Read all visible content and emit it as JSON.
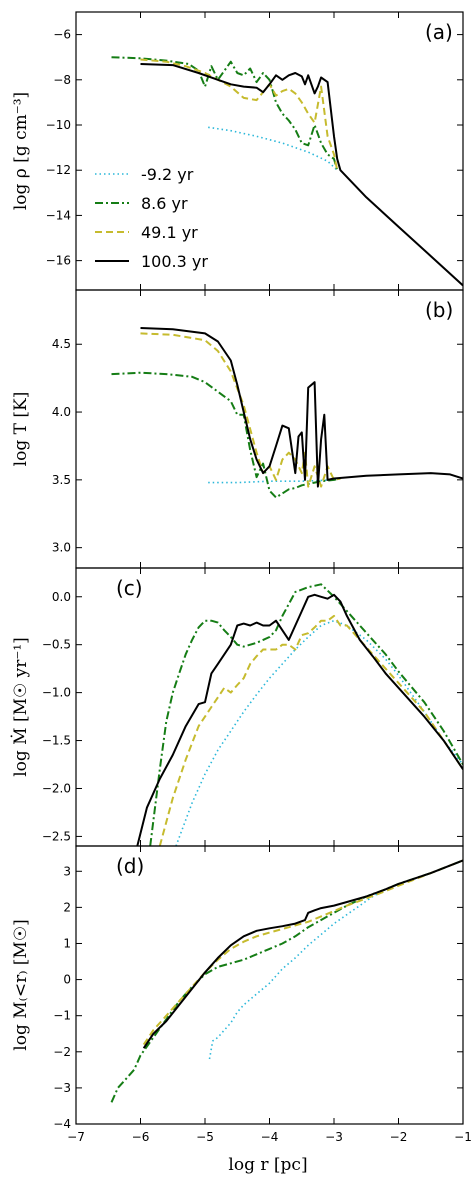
{
  "figure": {
    "xlabel": "log r [pc]",
    "xlim": [
      -7,
      -1
    ],
    "xticks": [
      -7,
      -6,
      -5,
      -4,
      -3,
      -2,
      -1
    ],
    "xtick_labels": [
      "−7",
      "−6",
      "−5",
      "−4",
      "−3",
      "−2",
      "−1"
    ]
  },
  "series_styles": [
    {
      "name": "-9.2 yr",
      "color": "#2ab7d9",
      "dash": "1.5,3",
      "width": 1.6
    },
    {
      "name": "8.6 yr",
      "color": "#157d15",
      "dash": "8,3,2,3",
      "width": 2
    },
    {
      "name": "49.1 yr",
      "color": "#c6bb2e",
      "dash": "7,4",
      "width": 2
    },
    {
      "name": "100.3 yr",
      "color": "#000000",
      "dash": "",
      "width": 2
    }
  ],
  "chart_data": [
    {
      "type": "line",
      "panel_label": "(a)",
      "ylabel": "log ρ [g cm⁻³]",
      "ylim": [
        -17.3,
        -5
      ],
      "yticks": [
        -16,
        -14,
        -12,
        -10,
        -8,
        -6
      ],
      "ytick_labels": [
        "−16",
        "−14",
        "−12",
        "−10",
        "−8",
        "−6"
      ],
      "legend": {
        "placement": "center-left",
        "entries": [
          "-9.2 yr",
          "8.6 yr",
          "49.1 yr",
          "100.3 yr"
        ]
      },
      "series": [
        {
          "name": "-9.2 yr",
          "x": [
            -4.95,
            -4.6,
            -4.2,
            -3.8,
            -3.4,
            -3.1,
            -2.95
          ],
          "y": [
            -10.1,
            -10.25,
            -10.5,
            -10.8,
            -11.2,
            -11.6,
            -12
          ]
        },
        {
          "name": "8.6 yr",
          "x": [
            -6.45,
            -6.0,
            -5.6,
            -5.25,
            -5.1,
            -5.0,
            -4.9,
            -4.8,
            -4.7,
            -4.6,
            -4.5,
            -4.4,
            -4.3,
            -4.2,
            -4.1,
            -4.0,
            -3.9,
            -3.8,
            -3.7,
            -3.6,
            -3.5,
            -3.4,
            -3.3,
            -3.2,
            -3.1,
            -3.0,
            -2.95
          ],
          "y": [
            -7.0,
            -7.05,
            -7.15,
            -7.3,
            -7.6,
            -8.3,
            -7.4,
            -8.0,
            -7.6,
            -7.2,
            -7.7,
            -7.8,
            -7.5,
            -8.1,
            -7.7,
            -8.0,
            -9.0,
            -9.5,
            -9.8,
            -10.2,
            -10.8,
            -10.9,
            -10.0,
            -10.8,
            -11.3,
            -11.5,
            -12.0
          ]
        },
        {
          "name": "49.1 yr",
          "x": [
            -6.0,
            -5.6,
            -5.3,
            -5.0,
            -4.8,
            -4.6,
            -4.4,
            -4.2,
            -4.0,
            -3.9,
            -3.8,
            -3.7,
            -3.6,
            -3.5,
            -3.4,
            -3.3,
            -3.2,
            -3.1,
            -3.0,
            -2.95
          ],
          "y": [
            -7.1,
            -7.2,
            -7.4,
            -7.7,
            -8.0,
            -8.3,
            -8.8,
            -8.9,
            -8.2,
            -8.7,
            -8.5,
            -8.4,
            -8.6,
            -9.0,
            -9.5,
            -9.9,
            -8.3,
            -10.5,
            -11.3,
            -12.0
          ]
        },
        {
          "name": "100.3 yr",
          "x": [
            -6.0,
            -5.5,
            -5.1,
            -4.8,
            -4.6,
            -4.4,
            -4.2,
            -4.1,
            -4.0,
            -3.9,
            -3.8,
            -3.7,
            -3.6,
            -3.5,
            -3.45,
            -3.4,
            -3.3,
            -3.25,
            -3.2,
            -3.1,
            -3.0,
            -2.95,
            -2.9,
            -2.5,
            -2.0,
            -1.5,
            -1.0
          ],
          "y": [
            -7.3,
            -7.35,
            -7.7,
            -8.0,
            -8.2,
            -8.3,
            -8.35,
            -8.55,
            -8.2,
            -7.8,
            -8.0,
            -7.8,
            -7.7,
            -7.85,
            -8.2,
            -7.8,
            -8.6,
            -8.3,
            -7.9,
            -8.1,
            -10.5,
            -11.5,
            -12.0,
            -13.2,
            -14.5,
            -15.8,
            -17.1
          ]
        }
      ]
    },
    {
      "type": "line",
      "panel_label": "(b)",
      "ylabel": "log T [K]",
      "ylim": [
        2.85,
        4.9
      ],
      "yticks": [
        3.0,
        3.5,
        4.0,
        4.5
      ],
      "ytick_labels": [
        "3.0",
        "3.5",
        "4.0",
        "4.5"
      ],
      "series": [
        {
          "name": "-9.2 yr",
          "x": [
            -4.95,
            -4.5,
            -4.0,
            -3.5,
            -3.0,
            -2.9
          ],
          "y": [
            3.48,
            3.48,
            3.49,
            3.49,
            3.5,
            3.51
          ]
        },
        {
          "name": "8.6 yr",
          "x": [
            -6.45,
            -6.0,
            -5.6,
            -5.2,
            -5.0,
            -4.8,
            -4.6,
            -4.5,
            -4.4,
            -4.3,
            -4.2,
            -4.1,
            -4.0,
            -3.9,
            -3.8,
            -3.7,
            -3.6,
            -3.5,
            -3.4,
            -3.3,
            -3.2,
            -3.0,
            -2.9
          ],
          "y": [
            4.28,
            4.29,
            4.28,
            4.26,
            4.22,
            4.15,
            4.08,
            3.98,
            3.98,
            3.72,
            3.52,
            3.62,
            3.42,
            3.37,
            3.4,
            3.43,
            3.44,
            3.46,
            3.47,
            3.48,
            3.49,
            3.5,
            3.51
          ]
        },
        {
          "name": "49.1 yr",
          "x": [
            -6.0,
            -5.5,
            -5.0,
            -4.8,
            -4.6,
            -4.4,
            -4.2,
            -4.1,
            -4.0,
            -3.9,
            -3.8,
            -3.7,
            -3.6,
            -3.5,
            -3.45,
            -3.4,
            -3.3,
            -3.2,
            -3.1,
            -3.0,
            -2.9
          ],
          "y": [
            4.58,
            4.57,
            4.53,
            4.45,
            4.3,
            4.05,
            3.7,
            3.55,
            3.6,
            3.5,
            3.65,
            3.7,
            3.65,
            3.55,
            3.7,
            3.45,
            3.6,
            3.45,
            3.6,
            3.5,
            3.51
          ]
        },
        {
          "name": "100.3 yr",
          "x": [
            -6.0,
            -5.5,
            -5.0,
            -4.8,
            -4.6,
            -4.5,
            -4.4,
            -4.3,
            -4.2,
            -4.1,
            -4.0,
            -3.9,
            -3.8,
            -3.7,
            -3.6,
            -3.55,
            -3.5,
            -3.45,
            -3.4,
            -3.3,
            -3.25,
            -3.2,
            -3.15,
            -3.1,
            -3.0,
            -2.5,
            -2.0,
            -1.5,
            -1.2,
            -1.0
          ],
          "y": [
            4.62,
            4.61,
            4.58,
            4.52,
            4.38,
            4.2,
            4.0,
            3.8,
            3.65,
            3.55,
            3.6,
            3.75,
            3.9,
            3.88,
            3.55,
            3.82,
            3.85,
            3.5,
            4.18,
            4.22,
            3.45,
            3.8,
            3.98,
            3.5,
            3.51,
            3.53,
            3.54,
            3.55,
            3.54,
            3.51
          ]
        }
      ]
    },
    {
      "type": "line",
      "panel_label": "(c)",
      "ylabel": "log Ṁ [M☉ yr⁻¹]",
      "ylim": [
        -2.6,
        0.3
      ],
      "yticks": [
        -2.5,
        -2.0,
        -1.5,
        -1.0,
        -0.5,
        0.0
      ],
      "ytick_labels": [
        "−2.5",
        "−2.0",
        "−1.5",
        "−1.0",
        "−0.5",
        "0.0"
      ],
      "series": [
        {
          "name": "-9.2 yr",
          "x": [
            -5.45,
            -5.2,
            -5.0,
            -4.8,
            -4.6,
            -4.4,
            -4.2,
            -4.0,
            -3.8,
            -3.6,
            -3.4,
            -3.2,
            -3.0,
            -2.8,
            -2.5,
            -2.2,
            -2.0,
            -1.6,
            -1.3,
            -1.0
          ],
          "y": [
            -2.6,
            -2.15,
            -1.85,
            -1.6,
            -1.4,
            -1.2,
            -1.02,
            -0.85,
            -0.7,
            -0.55,
            -0.42,
            -0.3,
            -0.25,
            -0.3,
            -0.45,
            -0.65,
            -0.82,
            -1.2,
            -1.5,
            -1.75
          ]
        },
        {
          "name": "8.6 yr",
          "x": [
            -5.85,
            -5.7,
            -5.6,
            -5.5,
            -5.4,
            -5.3,
            -5.2,
            -5.1,
            -5.0,
            -4.9,
            -4.8,
            -4.7,
            -4.6,
            -4.5,
            -4.4,
            -4.3,
            -4.2,
            -4.1,
            -4.0,
            -3.9,
            -3.8,
            -3.6,
            -3.4,
            -3.2,
            -3.0,
            -2.8,
            -2.6,
            -2.4,
            -2.2,
            -2.0,
            -1.6,
            -1.3,
            -1.0
          ],
          "y": [
            -2.6,
            -1.8,
            -1.3,
            -1.0,
            -0.8,
            -0.6,
            -0.45,
            -0.32,
            -0.25,
            -0.25,
            -0.27,
            -0.35,
            -0.42,
            -0.5,
            -0.52,
            -0.5,
            -0.48,
            -0.45,
            -0.42,
            -0.35,
            -0.2,
            0.05,
            0.1,
            0.13,
            0.0,
            -0.15,
            -0.3,
            -0.45,
            -0.6,
            -0.78,
            -1.1,
            -1.4,
            -1.75
          ]
        },
        {
          "name": "49.1 yr",
          "x": [
            -5.7,
            -5.5,
            -5.3,
            -5.1,
            -4.9,
            -4.7,
            -4.6,
            -4.5,
            -4.4,
            -4.3,
            -4.2,
            -4.1,
            -4.0,
            -3.9,
            -3.8,
            -3.7,
            -3.6,
            -3.5,
            -3.4,
            -3.3,
            -3.2,
            -3.1,
            -3.0,
            -2.9,
            -2.8,
            -2.6,
            -2.4,
            -2.2,
            -2.0,
            -1.6,
            -1.3,
            -1.0
          ],
          "y": [
            -2.6,
            -2.1,
            -1.7,
            -1.35,
            -1.15,
            -0.95,
            -1.0,
            -0.92,
            -0.85,
            -0.7,
            -0.62,
            -0.55,
            -0.55,
            -0.55,
            -0.5,
            -0.5,
            -0.55,
            -0.4,
            -0.38,
            -0.32,
            -0.25,
            -0.25,
            -0.2,
            -0.3,
            -0.3,
            -0.45,
            -0.6,
            -0.75,
            -0.9,
            -1.2,
            -1.5,
            -1.8
          ]
        },
        {
          "name": "100.3 yr",
          "x": [
            -6.05,
            -5.9,
            -5.7,
            -5.5,
            -5.3,
            -5.1,
            -5.0,
            -4.9,
            -4.8,
            -4.6,
            -4.5,
            -4.4,
            -4.3,
            -4.2,
            -4.1,
            -4.0,
            -3.9,
            -3.8,
            -3.7,
            -3.6,
            -3.5,
            -3.4,
            -3.3,
            -3.2,
            -3.1,
            -3.0,
            -2.9,
            -2.8,
            -2.6,
            -2.4,
            -2.2,
            -2.0,
            -1.6,
            -1.3,
            -1.0
          ],
          "y": [
            -2.6,
            -2.2,
            -1.9,
            -1.65,
            -1.35,
            -1.12,
            -1.1,
            -0.8,
            -0.7,
            -0.5,
            -0.3,
            -0.28,
            -0.3,
            -0.27,
            -0.3,
            -0.3,
            -0.25,
            -0.35,
            -0.45,
            -0.3,
            -0.15,
            0.0,
            0.02,
            0.0,
            -0.02,
            0.02,
            -0.05,
            -0.2,
            -0.45,
            -0.62,
            -0.8,
            -0.95,
            -1.25,
            -1.5,
            -1.8
          ]
        }
      ]
    },
    {
      "type": "line",
      "panel_label": "(d)",
      "ylabel": "log M₍<r₎ [M☉]",
      "ylim": [
        -4,
        3.7
      ],
      "yticks": [
        -4,
        -3,
        -2,
        -1,
        0,
        1,
        2,
        3
      ],
      "ytick_labels": [
        "−4",
        "−3",
        "−2",
        "−1",
        "0",
        "1",
        "2",
        "3"
      ],
      "series": [
        {
          "name": "-9.2 yr",
          "x": [
            -4.93,
            -4.88,
            -4.8,
            -4.7,
            -4.6,
            -4.5,
            -4.4,
            -4.2,
            -4.0,
            -3.8,
            -3.6,
            -3.4,
            -3.2,
            -3.0,
            -2.8,
            -2.6,
            -2.4,
            -2.2
          ],
          "y": [
            -2.2,
            -1.7,
            -1.6,
            -1.4,
            -1.2,
            -0.9,
            -0.7,
            -0.4,
            -0.1,
            0.3,
            0.6,
            0.95,
            1.25,
            1.55,
            1.8,
            2.05,
            2.3,
            2.5
          ]
        },
        {
          "name": "8.6 yr",
          "x": [
            -6.45,
            -6.35,
            -6.25,
            -6.1,
            -6.0,
            -5.8,
            -5.6,
            -5.4,
            -5.2,
            -5.0,
            -4.8,
            -4.6,
            -4.4,
            -4.2,
            -4.0,
            -3.8,
            -3.6,
            -3.4,
            -3.2,
            -3.0,
            -2.8,
            -2.5,
            -2.2,
            -2.0,
            -1.5,
            -1.0
          ],
          "y": [
            -3.4,
            -3.0,
            -2.8,
            -2.5,
            -2.1,
            -1.6,
            -1.1,
            -0.6,
            -0.2,
            0.15,
            0.35,
            0.45,
            0.55,
            0.7,
            0.85,
            1.0,
            1.2,
            1.45,
            1.65,
            1.85,
            2.05,
            2.3,
            2.5,
            2.65,
            2.95,
            3.3
          ]
        },
        {
          "name": "49.1 yr",
          "x": [
            -5.95,
            -5.8,
            -5.6,
            -5.4,
            -5.2,
            -5.0,
            -4.8,
            -4.6,
            -4.4,
            -4.2,
            -4.0,
            -3.8,
            -3.6,
            -3.4,
            -3.2,
            -3.0,
            -2.8,
            -2.5,
            -2.2,
            -2.0,
            -1.5,
            -1.0
          ],
          "y": [
            -1.8,
            -1.4,
            -1.0,
            -0.6,
            -0.2,
            0.2,
            0.55,
            0.85,
            1.05,
            1.2,
            1.3,
            1.4,
            1.5,
            1.6,
            1.75,
            1.9,
            2.05,
            2.25,
            2.45,
            2.6,
            2.95,
            3.3
          ]
        },
        {
          "name": "100.3 yr",
          "x": [
            -5.95,
            -5.8,
            -5.6,
            -5.4,
            -5.2,
            -5.0,
            -4.8,
            -4.6,
            -4.4,
            -4.2,
            -4.0,
            -3.8,
            -3.6,
            -3.45,
            -3.4,
            -3.3,
            -3.2,
            -3.0,
            -2.8,
            -2.5,
            -2.2,
            -2.0,
            -1.5,
            -1.0
          ],
          "y": [
            -1.9,
            -1.5,
            -1.15,
            -0.7,
            -0.25,
            0.2,
            0.6,
            0.95,
            1.2,
            1.35,
            1.42,
            1.48,
            1.55,
            1.65,
            1.85,
            1.92,
            1.98,
            2.05,
            2.15,
            2.3,
            2.5,
            2.65,
            2.95,
            3.3
          ]
        }
      ]
    }
  ]
}
